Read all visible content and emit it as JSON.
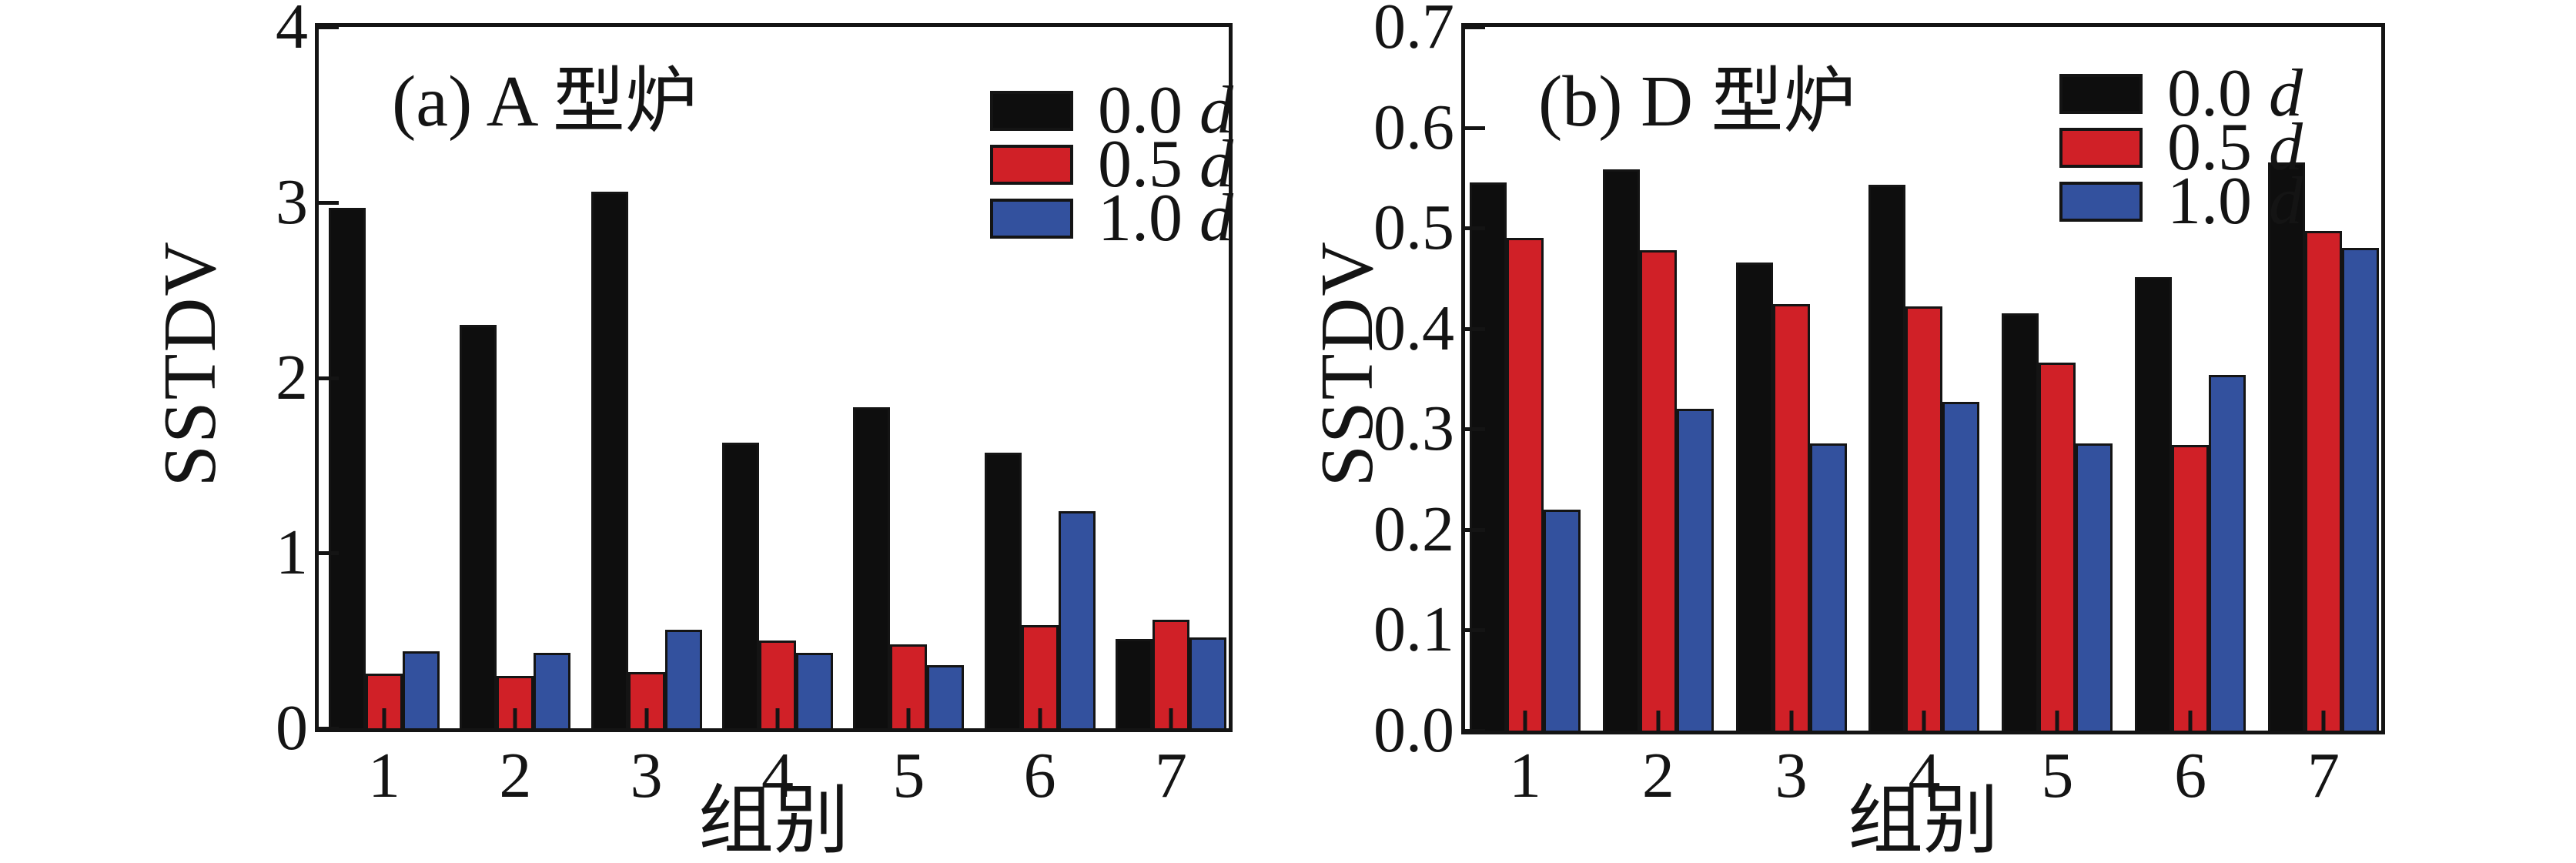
{
  "chart_data": [
    {
      "type": "bar",
      "panel_label": "a",
      "title": "(a) A 型炉",
      "ylabel": "SSTDV",
      "xlabel": "组别",
      "categories": [
        "1",
        "2",
        "3",
        "4",
        "5",
        "6",
        "7"
      ],
      "ylim": [
        0,
        4
      ],
      "yticks": [
        0,
        1,
        2,
        3,
        4
      ],
      "ytick_labels": [
        "0",
        "1",
        "2",
        "3",
        "4"
      ],
      "grid": "off",
      "legend_position": "upper-right-inside",
      "series": [
        {
          "label": "0.0",
          "unit": "d",
          "color": "#0e0e0e",
          "values": [
            2.97,
            2.3,
            3.06,
            1.63,
            1.83,
            1.57,
            0.51
          ]
        },
        {
          "label": "0.5",
          "unit": "d",
          "color": "#d02027",
          "values": [
            0.31,
            0.3,
            0.32,
            0.5,
            0.48,
            0.59,
            0.62
          ]
        },
        {
          "label": "1.0",
          "unit": "d",
          "color": "#33519e",
          "values": [
            0.44,
            0.43,
            0.56,
            0.43,
            0.36,
            1.24,
            0.52
          ]
        }
      ]
    },
    {
      "type": "bar",
      "panel_label": "b",
      "title": "(b) D 型炉",
      "ylabel": "SSTDV",
      "xlabel": "组别",
      "categories": [
        "1",
        "2",
        "3",
        "4",
        "5",
        "6",
        "7"
      ],
      "ylim": [
        0,
        0.7
      ],
      "yticks": [
        0,
        0.1,
        0.2,
        0.3,
        0.4,
        0.5,
        0.6,
        0.7
      ],
      "ytick_labels": [
        "0.0",
        "0.1",
        "0.2",
        "0.3",
        "0.4",
        "0.5",
        "0.6",
        "0.7"
      ],
      "grid": "off",
      "legend_position": "upper-right-inside",
      "series": [
        {
          "label": "0.0",
          "unit": "d",
          "color": "#0e0e0e",
          "values": [
            0.545,
            0.558,
            0.466,
            0.543,
            0.415,
            0.451,
            0.565
          ]
        },
        {
          "label": "0.5",
          "unit": "d",
          "color": "#d02027",
          "values": [
            0.49,
            0.478,
            0.424,
            0.422,
            0.366,
            0.284,
            0.497
          ]
        },
        {
          "label": "1.0",
          "unit": "d",
          "color": "#33519e",
          "values": [
            0.22,
            0.32,
            0.286,
            0.327,
            0.286,
            0.354,
            0.48
          ]
        }
      ]
    }
  ]
}
